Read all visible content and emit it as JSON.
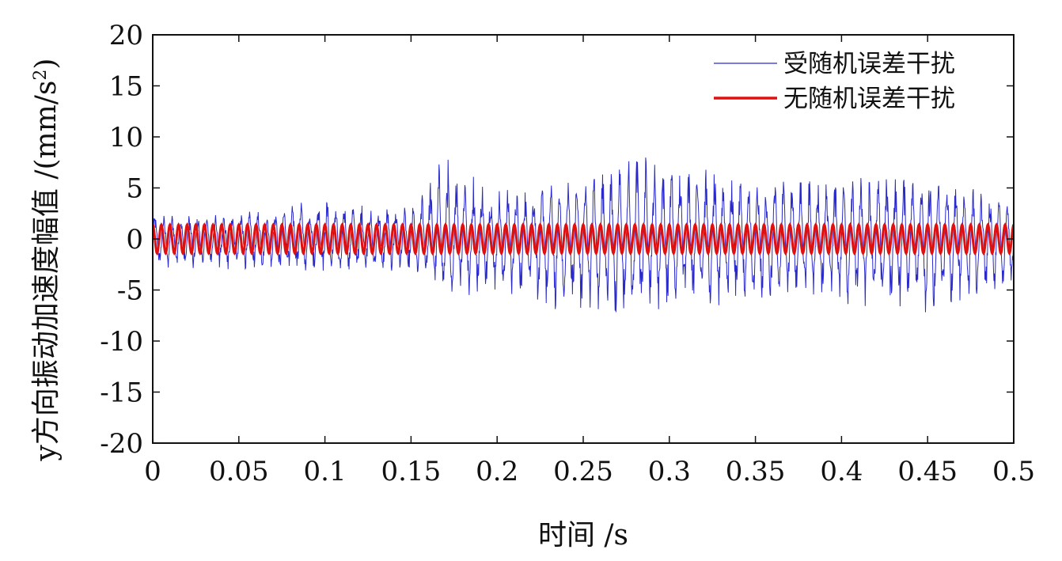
{
  "chart_data": {
    "type": "line",
    "xlabel": "时间 /s",
    "ylabel_main": "y方向振动加速度幅值 /(mm/s",
    "ylabel_sup": "2",
    "ylabel_close": ")",
    "xlim": [
      0,
      0.5
    ],
    "ylim": [
      -20,
      20
    ],
    "x_ticks": [
      "0",
      "0.05",
      "0.1",
      "0.15",
      "0.2",
      "0.25",
      "0.3",
      "0.35",
      "0.4",
      "0.45",
      "0.5"
    ],
    "x_tick_values": [
      0,
      0.05,
      0.1,
      0.15,
      0.2,
      0.25,
      0.3,
      0.35,
      0.4,
      0.45,
      0.5
    ],
    "y_ticks": [
      "20",
      "15",
      "10",
      "5",
      "0",
      "-5",
      "-10",
      "-15",
      "-20"
    ],
    "y_tick_values": [
      20,
      15,
      10,
      5,
      0,
      -5,
      -10,
      -15,
      -20
    ],
    "grid": false,
    "legend_position": "top-right",
    "series": [
      {
        "name": "受随机误差干扰",
        "color": "#2a2acc",
        "sample_interval_s": 0.0005,
        "dominant_frequency_hz": 200,
        "envelope": {
          "x": [
            0,
            0.05,
            0.1,
            0.15,
            0.17,
            0.2,
            0.25,
            0.28,
            0.3,
            0.35,
            0.4,
            0.45,
            0.5
          ],
          "max": [
            2.5,
            2.5,
            4.0,
            3.0,
            8.5,
            5.0,
            6.0,
            8.5,
            7.5,
            6.0,
            6.0,
            6.5,
            4.0
          ],
          "min": [
            -3.0,
            -3.0,
            -3.5,
            -3.0,
            -5.5,
            -6.0,
            -7.5,
            -7.8,
            -7.0,
            -6.5,
            -6.5,
            -7.5,
            -5.0
          ]
        }
      },
      {
        "name": "无随机误差干扰",
        "color": "#e01010",
        "amplitude": 1.4,
        "frequency_hz": 200
      }
    ]
  }
}
